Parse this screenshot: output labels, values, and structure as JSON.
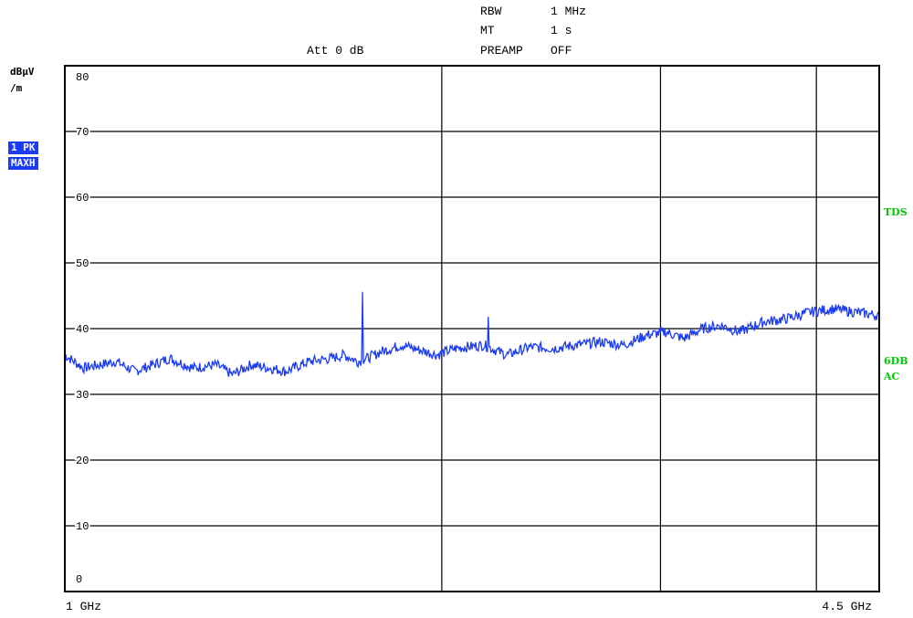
{
  "header": {
    "rbw_label": "RBW",
    "rbw_value": "1 MHz",
    "mt_label": "MT",
    "mt_value": "1 s",
    "preamp_label": "PREAMP",
    "preamp_value": "OFF",
    "att": "Att 0 dB"
  },
  "unit_line1": "dBµV",
  "unit_line2": "/m",
  "trace_badge_1": "1 PK",
  "trace_badge_2": "MAXH",
  "side_labels": {
    "tds": "TDS",
    "sixdb": "6DB",
    "ac": "AC"
  },
  "colors": {
    "trace": "#1c3cf0",
    "grid": "#000000",
    "side": "#00c800",
    "badge": "#1c3cf0"
  },
  "chart_data": {
    "type": "line",
    "x_start_label": "1 GHz",
    "x_stop_label": "4.5 GHz",
    "x_unit": "GHz",
    "xlim": [
      1.0,
      4.5
    ],
    "ylim": [
      0,
      80
    ],
    "ylabel": "dBµV/m",
    "y_ticks": [
      0,
      10,
      20,
      30,
      40,
      50,
      60,
      70,
      80
    ],
    "grid": true,
    "x_gridlines_ghz": [
      2.62,
      3.56,
      4.23
    ],
    "series": [
      {
        "x": [
          1.0,
          1.08,
          1.15,
          1.22,
          1.3,
          1.38,
          1.45,
          1.55,
          1.65,
          1.72,
          1.8,
          1.88,
          1.95,
          2.05,
          2.15,
          2.2,
          2.26,
          2.3,
          2.36,
          2.45,
          2.55,
          2.6,
          2.68,
          2.8,
          2.9,
          3.0,
          3.1,
          3.2,
          3.3,
          3.4,
          3.5,
          3.58,
          3.66,
          3.74,
          3.82,
          3.9,
          4.0,
          4.1,
          4.2,
          4.3,
          4.4,
          4.5
        ],
        "y": [
          36,
          34,
          34.5,
          35,
          33.5,
          34.5,
          35.5,
          34,
          34.5,
          33,
          34.5,
          34,
          33.5,
          35,
          35.5,
          36,
          35,
          35.5,
          36.5,
          37.5,
          36.5,
          36,
          37,
          37.5,
          36,
          37.2,
          37,
          37.5,
          38,
          37.5,
          39,
          39.5,
          38.5,
          40,
          40.5,
          39.5,
          41,
          41.5,
          42.5,
          43,
          42.5,
          42
        ],
        "spikes": [
          {
            "x": 2.28,
            "y": 45.6
          },
          {
            "x": 2.82,
            "y": 41.8
          }
        ]
      }
    ]
  }
}
